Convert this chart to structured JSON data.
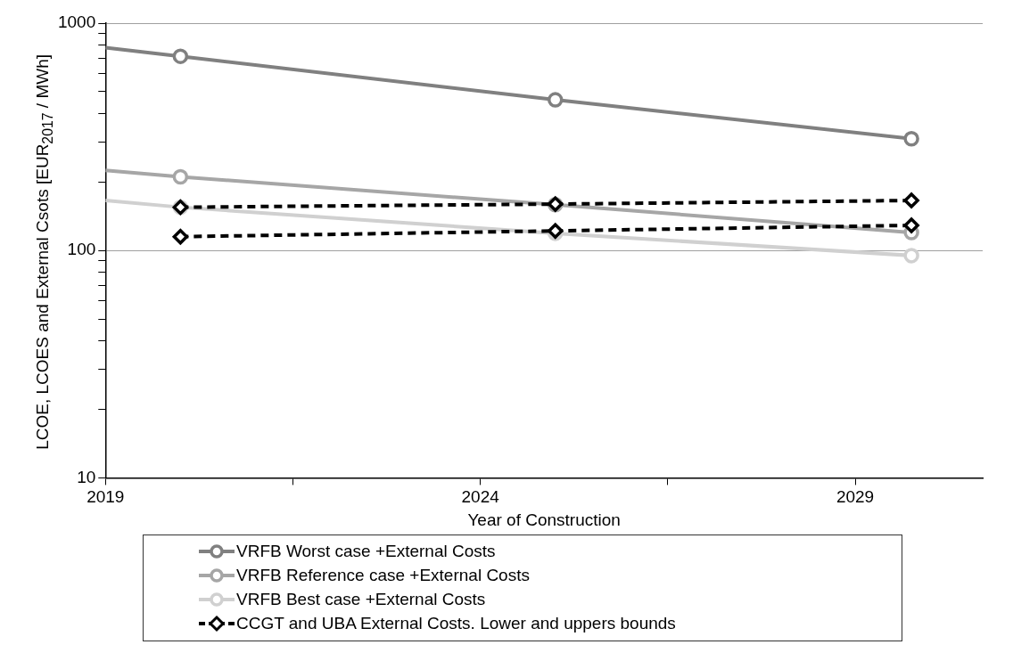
{
  "chart_data": {
    "type": "line",
    "xlabel": "Year of Construction",
    "ylabel": "LCOE, LCOES and External Csots [EUR$_{2017}$ / MWh]",
    "log": "y",
    "grid": "y",
    "legend": "bottom",
    "xlim": [
      2019,
      2030.7
    ],
    "xticks": [
      2019,
      {
        "value": 2021.5,
        "label": null
      },
      2024,
      {
        "value": 2026.5,
        "label": null
      },
      2029
    ],
    "ylim": [
      10,
      1000
    ],
    "yticks": [
      10,
      {
        "value": 20,
        "label": null
      },
      {
        "value": 30,
        "label": null
      },
      {
        "value": 40,
        "label": null
      },
      {
        "value": 50,
        "label": null
      },
      {
        "value": 60,
        "label": null
      },
      {
        "value": 70,
        "label": null
      },
      {
        "value": 80,
        "label": null
      },
      {
        "value": 90,
        "label": null
      },
      100,
      {
        "value": 200,
        "label": null
      },
      {
        "value": 300,
        "label": null
      },
      {
        "value": 400,
        "label": null
      },
      {
        "value": 500,
        "label": null
      },
      {
        "value": 600,
        "label": null
      },
      {
        "value": 700,
        "label": null
      },
      {
        "value": 800,
        "label": null
      },
      {
        "value": 900,
        "label": null
      },
      1000
    ],
    "series": [
      {
        "name": "VRFB Worst case +External Costs",
        "color": "#808080",
        "marker": "circle",
        "line_style": "solid",
        "x": [
          2019,
          2020,
          2025,
          2029.75
        ],
        "values": [
          780,
          715,
          460,
          310
        ]
      },
      {
        "name": "VRFB Reference case +External Costs",
        "color": "#a6a6a6",
        "marker": "circle",
        "line_style": "solid",
        "x": [
          2019,
          2020,
          2025,
          2029.75
        ],
        "values": [
          225,
          211,
          159,
          120
        ]
      },
      {
        "name": "VRFB Best case +External Costs",
        "color": "#d0d0d0",
        "marker": "circle",
        "line_style": "solid",
        "x": [
          2019,
          2020,
          2025,
          2029.75
        ],
        "values": [
          166,
          155,
          119,
          95
        ]
      },
      {
        "name": "CCGT and UBA External Costs. Lower and uppers bounds",
        "color": "#000000",
        "marker": "diamond",
        "line_style": "dashed",
        "x": [
          2020,
          2025,
          2029.75
        ],
        "values": [
          155,
          160,
          166
        ]
      },
      {
        "color": "#000000",
        "marker": "diamond",
        "line_style": "dashed",
        "x": [
          2020,
          2025,
          2029.75
        ],
        "values": [
          115,
          122,
          129
        ]
      }
    ]
  }
}
